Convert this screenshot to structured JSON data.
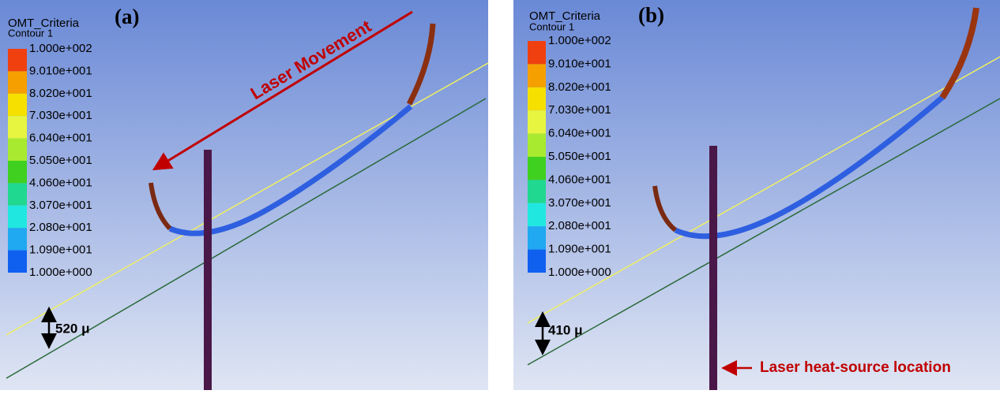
{
  "panels": [
    {
      "label": "(a)",
      "legend": {
        "title": "OMT_Criteria",
        "subtitle": "Contour 1",
        "ticks": [
          "1.000e+002",
          "9.010e+001",
          "8.020e+001",
          "7.030e+001",
          "6.040e+001",
          "5.050e+001",
          "4.060e+001",
          "3.070e+001",
          "2.080e+001",
          "1.090e+001",
          "1.000e+000"
        ]
      },
      "annotations": {
        "movement": "Laser Movement",
        "gap": "520 μ"
      }
    },
    {
      "label": "(b)",
      "legend": {
        "title": "OMT_Criteria",
        "subtitle": "Contour 1",
        "ticks": [
          "1.000e+002",
          "9.010e+001",
          "8.020e+001",
          "7.030e+001",
          "6.040e+001",
          "5.050e+001",
          "4.060e+001",
          "3.070e+001",
          "2.080e+001",
          "1.090e+001",
          "1.000e+000"
        ]
      },
      "annotations": {
        "gap": "410 μ",
        "source": "Laser heat-source location"
      }
    }
  ]
}
